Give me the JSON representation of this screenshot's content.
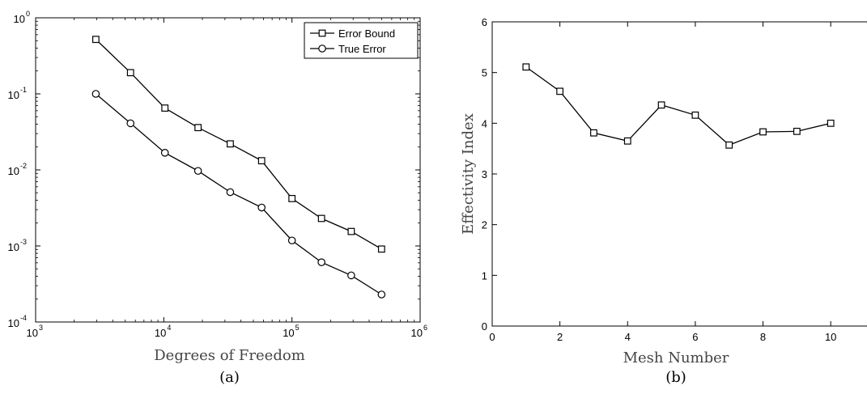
{
  "chart_data": [
    {
      "type": "line",
      "scale": "log-log",
      "xlabel": "Degrees of Freedom",
      "ylabel": "",
      "xlim": [
        1000,
        1000000
      ],
      "ylim": [
        0.0001,
        1
      ],
      "x_ticks": [
        {
          "base": "10",
          "exp": "3"
        },
        {
          "base": "10",
          "exp": "4"
        },
        {
          "base": "10",
          "exp": "5"
        },
        {
          "base": "10",
          "exp": "6"
        }
      ],
      "y_ticks": [
        {
          "base": "10",
          "exp": "-4"
        },
        {
          "base": "10",
          "exp": "-3"
        },
        {
          "base": "10",
          "exp": "-2"
        },
        {
          "base": "10",
          "exp": "-1"
        },
        {
          "base": "10",
          "exp": "0"
        }
      ],
      "legend": "top-right",
      "grid": false,
      "caption": "(a)",
      "series": [
        {
          "name": "Error Bound",
          "marker": "square",
          "x": [
            2950,
            5500,
            10200,
            18500,
            33000,
            58000,
            100000,
            170000,
            290000,
            500000
          ],
          "y": [
            0.52,
            0.19,
            0.065,
            0.036,
            0.022,
            0.0132,
            0.0042,
            0.0023,
            0.00155,
            0.00091
          ]
        },
        {
          "name": "True Error",
          "marker": "circle",
          "x": [
            2950,
            5500,
            10200,
            18500,
            33000,
            58000,
            100000,
            170000,
            290000,
            500000
          ],
          "y": [
            0.1,
            0.041,
            0.0168,
            0.0097,
            0.0051,
            0.0032,
            0.00118,
            0.00061,
            0.00041,
            0.00023
          ]
        }
      ]
    },
    {
      "type": "line",
      "xlabel": "Mesh Number",
      "ylabel": "Effectivity Index",
      "xlim": [
        0,
        11
      ],
      "ylim": [
        0,
        6
      ],
      "x_ticks": [
        "0",
        "2",
        "4",
        "6",
        "8",
        "10"
      ],
      "y_ticks": [
        "0",
        "1",
        "2",
        "3",
        "4",
        "5",
        "6"
      ],
      "grid": false,
      "caption": "(b)",
      "series": [
        {
          "marker": "square",
          "x": [
            1,
            2,
            3,
            4,
            5,
            6,
            7,
            8,
            9,
            10
          ],
          "y": [
            5.11,
            4.63,
            3.81,
            3.65,
            4.36,
            4.16,
            3.57,
            3.83,
            3.84,
            4.0
          ]
        }
      ]
    }
  ]
}
